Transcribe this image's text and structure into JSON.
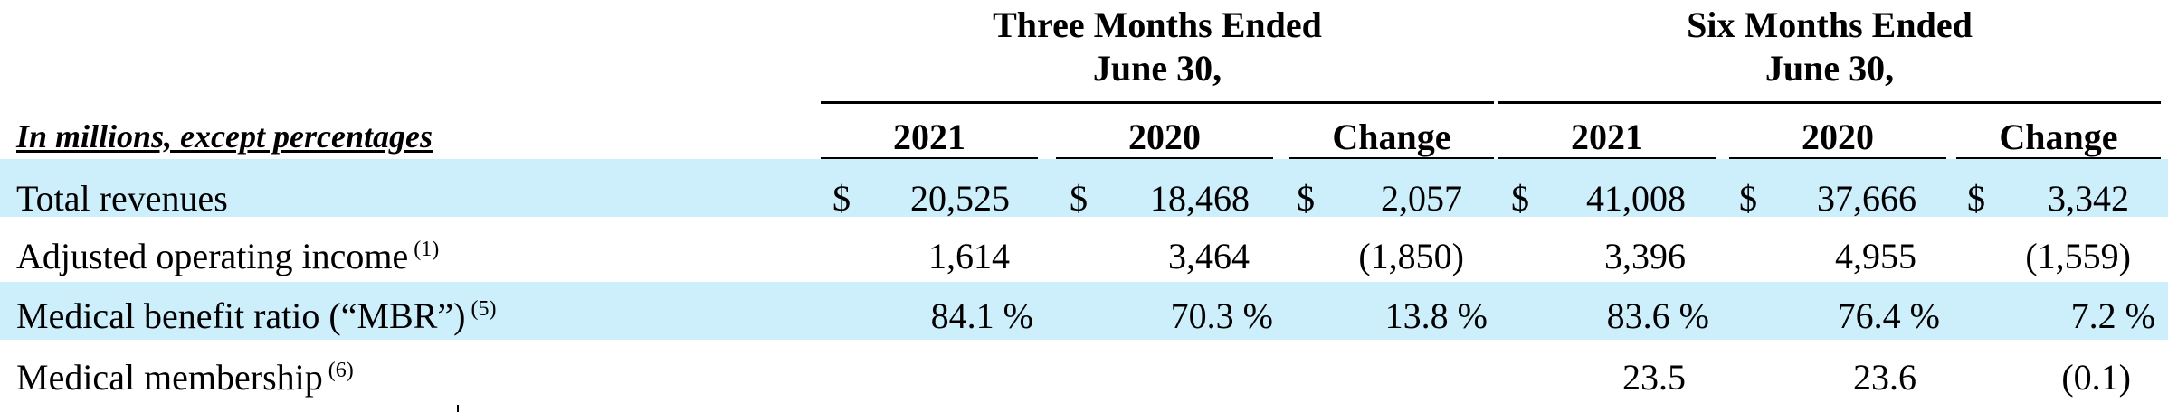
{
  "header": {
    "groups": [
      {
        "line1": "Three Months Ended",
        "line2": "June 30,"
      },
      {
        "line1": "Six Months Ended",
        "line2": "June 30,"
      }
    ],
    "units_label": "In millions, except percentages",
    "columns": [
      "2021",
      "2020",
      "Change",
      "2021",
      "2020",
      "Change"
    ]
  },
  "rows": [
    {
      "label": "Total revenues",
      "note": "",
      "highlight": true,
      "cells": [
        {
          "cur": "$",
          "val": "20,525"
        },
        {
          "cur": "$",
          "val": "18,468"
        },
        {
          "cur": "$",
          "val": "2,057"
        },
        {
          "cur": "$",
          "val": "41,008"
        },
        {
          "cur": "$",
          "val": "37,666"
        },
        {
          "cur": "$",
          "val": "3,342"
        }
      ]
    },
    {
      "label": "Adjusted operating income",
      "note": "(1)",
      "highlight": false,
      "cells": [
        {
          "cur": "",
          "val": "1,614"
        },
        {
          "cur": "",
          "val": "3,464"
        },
        {
          "cur": "",
          "val": "(1,850)"
        },
        {
          "cur": "",
          "val": "3,396"
        },
        {
          "cur": "",
          "val": "4,955"
        },
        {
          "cur": "",
          "val": "(1,559)"
        }
      ]
    },
    {
      "label": "Medical benefit ratio (“MBR”)",
      "note": "(5)",
      "highlight": true,
      "cells": [
        {
          "cur": "",
          "val": "84.1 %"
        },
        {
          "cur": "",
          "val": "70.3 %"
        },
        {
          "cur": "",
          "val": "13.8 %"
        },
        {
          "cur": "",
          "val": "83.6 %"
        },
        {
          "cur": "",
          "val": "76.4 %"
        },
        {
          "cur": "",
          "val": "7.2 %"
        }
      ]
    },
    {
      "label": "Medical membership",
      "note": "(6)",
      "highlight": false,
      "cells": [
        {
          "cur": "",
          "val": ""
        },
        {
          "cur": "",
          "val": ""
        },
        {
          "cur": "",
          "val": ""
        },
        {
          "cur": "",
          "val": "23.5"
        },
        {
          "cur": "",
          "val": "23.6"
        },
        {
          "cur": "",
          "val": "(0.1)"
        }
      ]
    }
  ],
  "colors": {
    "highlight_band": "#cdeefb",
    "text": "#000000"
  }
}
